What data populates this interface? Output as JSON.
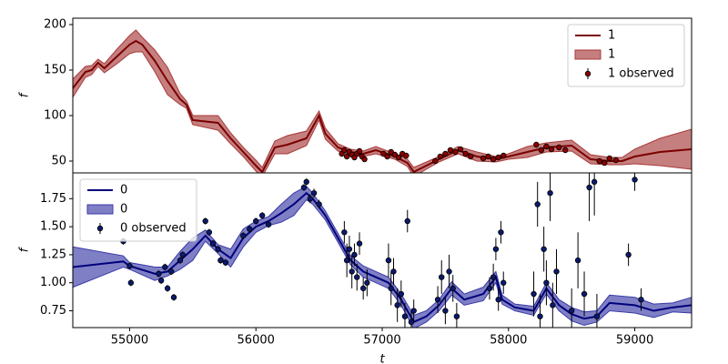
{
  "chart_data": [
    {
      "type": "line",
      "ylabel": "f",
      "xlim": [
        54550,
        59450
      ],
      "ylim": [
        37,
        207
      ],
      "yticks": [
        50,
        100,
        150,
        200
      ],
      "legend": "upper right",
      "series": [
        {
          "name": "1",
          "color": "#7a0000",
          "band_name": "1",
          "band_color": "#a83a3a",
          "x": [
            54550,
            54650,
            54700,
            54750,
            54800,
            54900,
            55000,
            55050,
            55100,
            55200,
            55300,
            55400,
            55450,
            55500,
            55700,
            55800,
            55900,
            56000,
            56050,
            56150,
            56250,
            56400,
            56500,
            56550,
            56650,
            56750,
            56850,
            56950,
            57100,
            57200,
            57250,
            57350,
            57450,
            57600,
            57750,
            57900,
            58000,
            58150,
            58300,
            58500,
            58650,
            58800,
            58900,
            59000,
            59200,
            59450
          ],
          "values": [
            130,
            148,
            150,
            158,
            152,
            165,
            178,
            182,
            178,
            160,
            138,
            118,
            112,
            95,
            92,
            75,
            60,
            45,
            38,
            65,
            68,
            75,
            100,
            80,
            65,
            60,
            58,
            62,
            55,
            48,
            38,
            45,
            52,
            62,
            55,
            52,
            55,
            60,
            65,
            67,
            52,
            50,
            50,
            55,
            60,
            63
          ],
          "band_errors": [
            10,
            6,
            5,
            4,
            5,
            8,
            10,
            12,
            8,
            12,
            15,
            6,
            4,
            5,
            8,
            6,
            5,
            6,
            5,
            7,
            10,
            8,
            5,
            6,
            4,
            3,
            3,
            4,
            3,
            4,
            5,
            4,
            3,
            4,
            5,
            3,
            3,
            6,
            5,
            6,
            5,
            4,
            4,
            8,
            15,
            22
          ]
        }
      ],
      "observed": {
        "name": "1 observed",
        "color": "#8b0000",
        "x": [
          56680,
          56700,
          56720,
          56740,
          56760,
          56780,
          56800,
          56820,
          56840,
          56860,
          57010,
          57040,
          57070,
          57100,
          57130,
          57160,
          57190,
          57420,
          57460,
          57500,
          57540,
          57580,
          57620,
          57660,
          57700,
          57800,
          57840,
          57880,
          57920,
          57960,
          58220,
          58260,
          58300,
          58340,
          58400,
          58450,
          58720,
          58760,
          58800,
          58850
        ],
        "values": [
          58,
          62,
          55,
          60,
          57,
          54,
          58,
          61,
          55,
          52,
          58,
          55,
          60,
          57,
          54,
          58,
          56,
          50,
          55,
          58,
          62,
          60,
          63,
          58,
          55,
          53,
          55,
          52,
          54,
          56,
          68,
          62,
          66,
          63,
          65,
          62,
          50,
          48,
          53,
          51
        ],
        "errors": [
          2,
          2,
          2,
          2,
          2,
          2,
          2,
          2,
          2,
          2,
          2,
          2,
          2,
          2,
          2,
          2,
          2,
          2,
          2,
          2,
          2,
          2,
          2,
          2,
          2,
          2,
          2,
          2,
          2,
          2,
          2,
          2,
          2,
          2,
          2,
          2,
          2,
          2,
          2,
          2
        ]
      }
    },
    {
      "type": "line",
      "ylabel": "f",
      "xlabel": "t",
      "xlim": [
        54550,
        59450
      ],
      "ylim": [
        0.6,
        1.98
      ],
      "xticks": [
        55000,
        56000,
        57000,
        58000,
        59000
      ],
      "yticks": [
        {
          "value": 0.75,
          "label": "0.75"
        },
        {
          "value": 1.0,
          "label": "1.00"
        },
        {
          "value": 1.25,
          "label": "1.25"
        },
        {
          "value": 1.5,
          "label": "1.50"
        },
        {
          "value": 1.75,
          "label": "1.75"
        }
      ],
      "legend": "upper left",
      "series": [
        {
          "name": "0",
          "color": "#00007a",
          "band_name": "0",
          "band_color": "#3a3aa8",
          "x": [
            54550,
            54950,
            55000,
            55200,
            55300,
            55400,
            55500,
            55600,
            55700,
            55800,
            55900,
            56000,
            56100,
            56200,
            56300,
            56400,
            56450,
            56550,
            56650,
            56750,
            56850,
            56950,
            57050,
            57150,
            57250,
            57350,
            57450,
            57550,
            57650,
            57800,
            57900,
            57950,
            58050,
            58200,
            58300,
            58400,
            58500,
            58600,
            58700,
            58800,
            59000,
            59150,
            59300,
            59450
          ],
          "values": [
            1.14,
            1.19,
            1.15,
            1.08,
            1.1,
            1.2,
            1.3,
            1.42,
            1.3,
            1.22,
            1.4,
            1.5,
            1.55,
            1.62,
            1.7,
            1.8,
            1.75,
            1.6,
            1.4,
            1.2,
            1.1,
            1.05,
            1.0,
            0.85,
            0.65,
            0.7,
            0.8,
            0.95,
            0.85,
            0.9,
            1.05,
            0.85,
            0.78,
            0.75,
            0.95,
            0.8,
            0.72,
            0.68,
            0.7,
            0.82,
            0.8,
            0.75,
            0.78,
            0.8
          ],
          "band_errors": [
            0.18,
            0.05,
            0.03,
            0.06,
            0.04,
            0.08,
            0.1,
            0.05,
            0.04,
            0.08,
            0.08,
            0.05,
            0.04,
            0.08,
            0.1,
            0.06,
            0.05,
            0.04,
            0.04,
            0.04,
            0.05,
            0.05,
            0.05,
            0.05,
            0.06,
            0.05,
            0.05,
            0.06,
            0.05,
            0.06,
            0.05,
            0.04,
            0.03,
            0.04,
            0.05,
            0.05,
            0.06,
            0.06,
            0.05,
            0.07,
            0.07,
            0.06,
            0.04,
            0.07
          ]
        }
      ],
      "observed": {
        "name": "0 observed",
        "color": "#0a1a6e",
        "x": [
          54950,
          55000,
          55010,
          55230,
          55250,
          55280,
          55300,
          55330,
          55350,
          55400,
          55420,
          55600,
          55630,
          55660,
          55700,
          55720,
          55760,
          55900,
          55950,
          56000,
          56050,
          56100,
          56380,
          56400,
          56430,
          56460,
          56500,
          56700,
          56720,
          56740,
          56760,
          56780,
          56800,
          56820,
          56850,
          56880,
          57050,
          57070,
          57090,
          57120,
          57150,
          57180,
          57200,
          57230,
          57250,
          57440,
          57470,
          57500,
          57530,
          57560,
          57590,
          57850,
          57880,
          57900,
          57920,
          57940,
          57960,
          58200,
          58230,
          58250,
          58280,
          58300,
          58330,
          58350,
          58380,
          58500,
          58550,
          58600,
          58640,
          58680,
          58700,
          58950,
          59000,
          59050
        ],
        "values": [
          1.37,
          1.15,
          1.0,
          1.08,
          1.02,
          1.14,
          0.95,
          1.1,
          0.87,
          1.2,
          1.25,
          1.55,
          1.45,
          1.35,
          1.3,
          1.2,
          1.18,
          1.42,
          1.48,
          1.55,
          1.6,
          1.52,
          1.85,
          1.9,
          1.75,
          1.8,
          1.7,
          1.45,
          1.2,
          1.3,
          1.1,
          1.25,
          1.05,
          1.35,
          0.95,
          1.0,
          1.2,
          0.95,
          1.1,
          0.8,
          0.9,
          0.7,
          1.55,
          0.65,
          0.75,
          0.85,
          1.05,
          0.75,
          1.1,
          0.95,
          0.7,
          0.95,
          1.05,
          1.3,
          0.85,
          1.45,
          1.0,
          0.9,
          1.7,
          0.7,
          1.3,
          1.0,
          1.8,
          0.8,
          1.1,
          0.75,
          1.2,
          0.9,
          1.85,
          1.9,
          0.7,
          1.25,
          1.92,
          0.85
        ],
        "errors": [
          0.03,
          0.03,
          0.03,
          0.03,
          0.03,
          0.03,
          0.03,
          0.03,
          0.03,
          0.03,
          0.03,
          0.03,
          0.03,
          0.03,
          0.03,
          0.03,
          0.03,
          0.03,
          0.03,
          0.03,
          0.03,
          0.03,
          0.03,
          0.03,
          0.04,
          0.04,
          0.04,
          0.1,
          0.15,
          0.12,
          0.15,
          0.1,
          0.12,
          0.1,
          0.1,
          0.12,
          0.15,
          0.15,
          0.12,
          0.15,
          0.12,
          0.12,
          0.1,
          0.1,
          0.1,
          0.12,
          0.15,
          0.12,
          0.15,
          0.12,
          0.12,
          0.1,
          0.12,
          0.1,
          0.1,
          0.1,
          0.1,
          0.2,
          0.2,
          0.2,
          0.2,
          0.2,
          0.25,
          0.2,
          0.2,
          0.2,
          0.25,
          0.2,
          0.3,
          0.3,
          0.2,
          0.1,
          0.1,
          0.1
        ]
      }
    }
  ]
}
